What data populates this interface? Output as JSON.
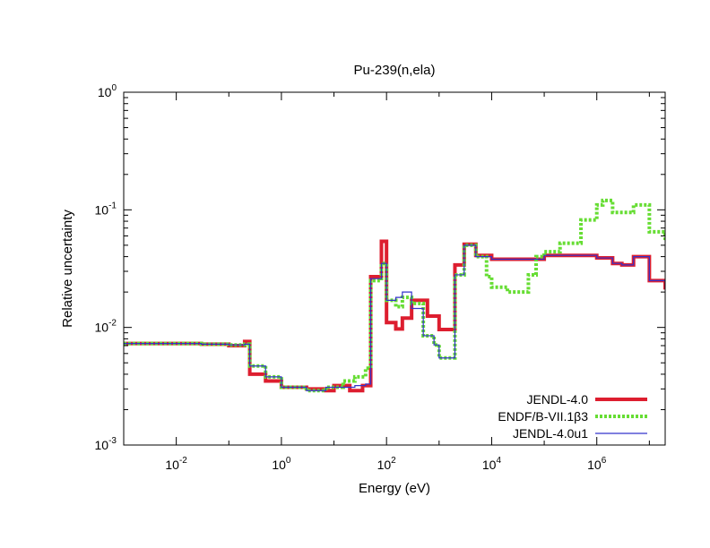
{
  "chart_data": {
    "type": "line",
    "title": "Pu-239(n,ela)",
    "xlabel": "Energy (eV)",
    "ylabel": "Relative uncertainty",
    "xscale": "log",
    "yscale": "log",
    "xlim": [
      0.001,
      20000000
    ],
    "ylim": [
      0.001,
      1
    ],
    "x_tick_labels": [
      {
        "value": 0.01,
        "base": "10",
        "exp": "-2"
      },
      {
        "value": 1,
        "base": "10",
        "exp": "0"
      },
      {
        "value": 100,
        "base": "10",
        "exp": "2"
      },
      {
        "value": 10000,
        "base": "10",
        "exp": "4"
      },
      {
        "value": 1000000,
        "base": "10",
        "exp": "6"
      }
    ],
    "y_tick_labels": [
      {
        "value": 0.001,
        "base": "10",
        "exp": "-3"
      },
      {
        "value": 0.01,
        "base": "10",
        "exp": "-2"
      },
      {
        "value": 0.1,
        "base": "10",
        "exp": "-1"
      },
      {
        "value": 1,
        "base": "10",
        "exp": "0"
      }
    ],
    "grid": false,
    "legend_position": "bottom-right",
    "series": [
      {
        "name": "JENDL-4.0",
        "color": "#dd1e2f",
        "style": "solid-thick",
        "x": [
          0.001,
          0.005,
          0.03,
          0.1,
          0.2,
          0.25,
          0.5,
          1,
          3,
          7,
          10,
          20,
          35,
          50,
          80,
          100,
          150,
          200,
          300,
          600,
          1000,
          2000,
          3000,
          5000,
          10000,
          100000,
          500000,
          1000000,
          2000000,
          3000000,
          5000000,
          10000000,
          20000000
        ],
        "y": [
          0.0073,
          0.0073,
          0.0072,
          0.007,
          0.0076,
          0.004,
          0.0035,
          0.0031,
          0.003,
          0.0029,
          0.0032,
          0.0029,
          0.0032,
          0.027,
          0.054,
          0.011,
          0.0097,
          0.012,
          0.017,
          0.0125,
          0.0096,
          0.034,
          0.051,
          0.041,
          0.038,
          0.041,
          0.041,
          0.039,
          0.035,
          0.034,
          0.04,
          0.025,
          0.021
        ]
      },
      {
        "name": "ENDF/B-VII.1β3",
        "color": "#66dd33",
        "style": "dotted",
        "x": [
          0.001,
          0.005,
          0.03,
          0.1,
          0.2,
          0.25,
          0.5,
          1,
          3,
          7,
          15,
          25,
          40,
          50,
          80,
          100,
          150,
          200,
          300,
          500,
          800,
          1000,
          2000,
          3000,
          5000,
          8000,
          10000,
          20000,
          50000,
          70000,
          100000,
          200000,
          500000,
          1000000,
          1300000,
          2000000,
          5000000,
          10000000,
          20000000
        ],
        "y": [
          0.0073,
          0.0073,
          0.0072,
          0.0071,
          0.0072,
          0.0047,
          0.0038,
          0.0031,
          0.0029,
          0.0031,
          0.0035,
          0.0038,
          0.0045,
          0.025,
          0.035,
          0.017,
          0.015,
          0.018,
          0.016,
          0.0085,
          0.0071,
          0.0055,
          0.028,
          0.05,
          0.04,
          0.027,
          0.022,
          0.02,
          0.028,
          0.04,
          0.044,
          0.052,
          0.082,
          0.11,
          0.12,
          0.095,
          0.11,
          0.065,
          0.054
        ]
      },
      {
        "name": "JENDL-4.0u1",
        "color": "#3333cc",
        "style": "solid-thin",
        "x": [
          0.001,
          0.005,
          0.03,
          0.1,
          0.2,
          0.25,
          0.5,
          1,
          3,
          7,
          15,
          25,
          40,
          50,
          80,
          100,
          150,
          200,
          300,
          500,
          800,
          1000,
          2000,
          3000,
          5000,
          10000,
          100000,
          500000,
          1000000,
          2000000,
          3000000,
          5000000,
          10000000,
          20000000
        ],
        "y": [
          0.0073,
          0.0073,
          0.0072,
          0.0071,
          0.0072,
          0.0047,
          0.0038,
          0.0031,
          0.0029,
          0.0031,
          0.0031,
          0.0032,
          0.0033,
          0.026,
          0.035,
          0.017,
          0.018,
          0.02,
          0.0145,
          0.0085,
          0.0071,
          0.0055,
          0.028,
          0.05,
          0.04,
          0.038,
          0.041,
          0.041,
          0.039,
          0.035,
          0.034,
          0.04,
          0.025,
          0.021
        ]
      }
    ],
    "overlap_color": "#8b1a8b"
  }
}
